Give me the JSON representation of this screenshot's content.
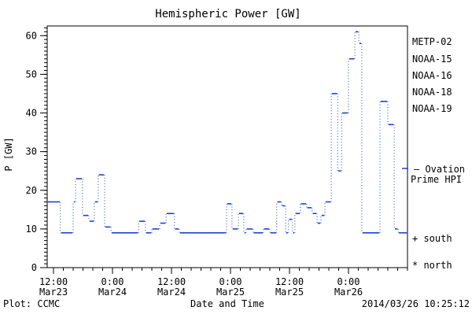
{
  "title": "Hemispheric Power [GW]",
  "footer": {
    "left": "Plot: CCMC",
    "right": "2014/03/26 10:25:12"
  },
  "legend": {
    "satellites": [
      {
        "label": "METP-02",
        "color": "#000000"
      },
      {
        "label": "NOAA-15",
        "color": "#2140d0"
      },
      {
        "label": "NOAA-16",
        "color": "#2ab4e8"
      },
      {
        "label": "NOAA-18",
        "color": "#5fd98a"
      },
      {
        "label": "NOAA-19",
        "color": "#ffa51f"
      }
    ],
    "model": {
      "line1": "– Ovation",
      "line2": "Prime HPI",
      "color": "#2140d0"
    },
    "markers": [
      {
        "text": "+ south"
      },
      {
        "text": "* north"
      }
    ]
  },
  "chart_data": {
    "type": "line",
    "subtype": "step",
    "title": "Hemispheric Power [GW]",
    "xlabel": "Date and Time",
    "ylabel": "P [GW]",
    "series_name": "Ovation Prime HPI",
    "line_color": "#2140d0",
    "line_style": "solid horizontal steps with dotted vertical connectors",
    "x_unit": "hours since 2014-03-23 00:00",
    "xlim_hours": [
      10.7,
      84
    ],
    "ylim": [
      0,
      62.5
    ],
    "y_major_ticks": [
      0,
      10,
      20,
      30,
      40,
      50,
      60
    ],
    "y_minor_tick_step": 1,
    "x_minor_tick_step_hours": 2,
    "x_major_ticks": [
      {
        "hour": 12,
        "time": "12:00",
        "date": "Mar23"
      },
      {
        "hour": 24,
        "time": "0:00",
        "date": "Mar24"
      },
      {
        "hour": 36,
        "time": "12:00",
        "date": "Mar24"
      },
      {
        "hour": 48,
        "time": "0:00",
        "date": "Mar25"
      },
      {
        "hour": 60,
        "time": "12:00",
        "date": "Mar25"
      },
      {
        "hour": 72,
        "time": "0:00",
        "date": "Mar26"
      }
    ],
    "steps_t_hours_value_gw": [
      [
        10.7,
        17
      ],
      [
        13.4,
        9
      ],
      [
        16.0,
        17
      ],
      [
        16.5,
        23
      ],
      [
        17.9,
        13.5
      ],
      [
        19.2,
        12
      ],
      [
        20.3,
        17
      ],
      [
        21.1,
        24
      ],
      [
        22.4,
        10.5
      ],
      [
        23.7,
        9
      ],
      [
        29.3,
        12
      ],
      [
        30.7,
        9
      ],
      [
        32.0,
        10
      ],
      [
        33.6,
        11.5
      ],
      [
        34.9,
        14
      ],
      [
        36.6,
        10
      ],
      [
        37.6,
        9
      ],
      [
        47.2,
        16.5
      ],
      [
        48.3,
        10
      ],
      [
        49.6,
        14
      ],
      [
        50.7,
        9
      ],
      [
        51.2,
        10
      ],
      [
        52.6,
        9
      ],
      [
        54.7,
        10
      ],
      [
        56.0,
        9
      ],
      [
        57.4,
        17
      ],
      [
        58.4,
        16
      ],
      [
        59.2,
        9
      ],
      [
        59.8,
        12.5
      ],
      [
        60.6,
        9
      ],
      [
        61.1,
        14
      ],
      [
        62.2,
        16.5
      ],
      [
        63.5,
        15.5
      ],
      [
        64.6,
        14
      ],
      [
        65.6,
        11.5
      ],
      [
        66.4,
        13.5
      ],
      [
        67.2,
        17
      ],
      [
        68.5,
        45
      ],
      [
        69.8,
        25
      ],
      [
        70.6,
        40
      ],
      [
        72.0,
        54
      ],
      [
        73.3,
        61
      ],
      [
        74.1,
        58
      ],
      [
        74.7,
        9
      ],
      [
        78.4,
        43
      ],
      [
        80.0,
        37
      ],
      [
        81.3,
        10
      ],
      [
        82.1,
        9
      ]
    ],
    "t_end_hours": 84
  }
}
